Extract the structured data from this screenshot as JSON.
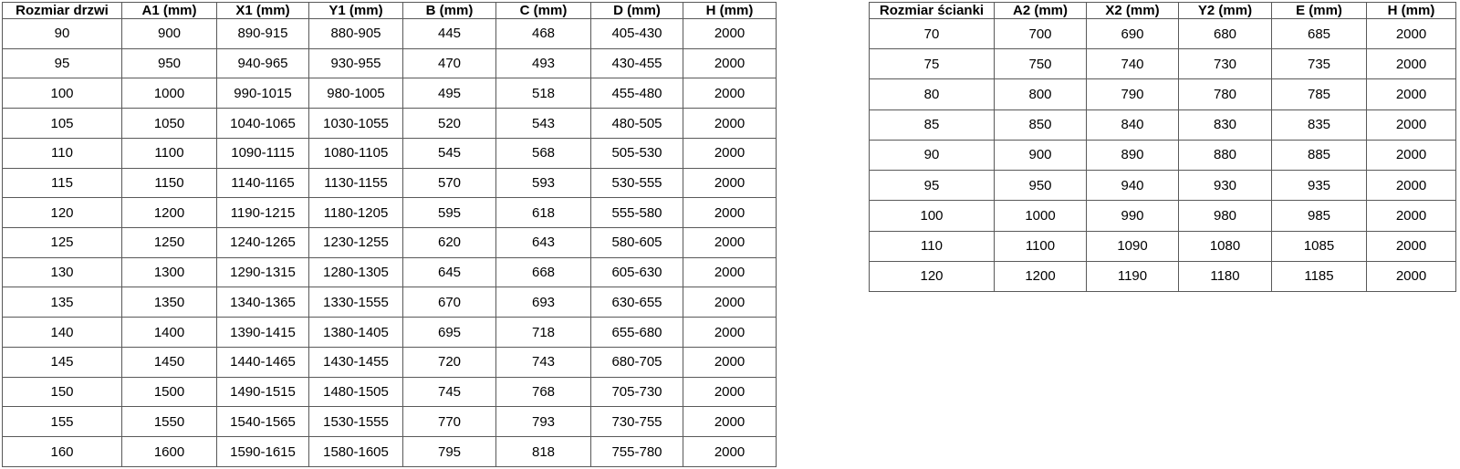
{
  "colors": {
    "background": "#ffffff",
    "border": "#595959",
    "text": "#000000"
  },
  "door_table": {
    "headers": [
      "Rozmiar drzwi",
      "A1 (mm)",
      "X1 (mm)",
      "Y1 (mm)",
      "B (mm)",
      "C (mm)",
      "D (mm)",
      "H (mm)"
    ],
    "rows": [
      [
        "90",
        "900",
        "890-915",
        "880-905",
        "445",
        "468",
        "405-430",
        "2000"
      ],
      [
        "95",
        "950",
        "940-965",
        "930-955",
        "470",
        "493",
        "430-455",
        "2000"
      ],
      [
        "100",
        "1000",
        "990-1015",
        "980-1005",
        "495",
        "518",
        "455-480",
        "2000"
      ],
      [
        "105",
        "1050",
        "1040-1065",
        "1030-1055",
        "520",
        "543",
        "480-505",
        "2000"
      ],
      [
        "110",
        "1100",
        "1090-1115",
        "1080-1105",
        "545",
        "568",
        "505-530",
        "2000"
      ],
      [
        "115",
        "1150",
        "1140-1165",
        "1130-1155",
        "570",
        "593",
        "530-555",
        "2000"
      ],
      [
        "120",
        "1200",
        "1190-1215",
        "1180-1205",
        "595",
        "618",
        "555-580",
        "2000"
      ],
      [
        "125",
        "1250",
        "1240-1265",
        "1230-1255",
        "620",
        "643",
        "580-605",
        "2000"
      ],
      [
        "130",
        "1300",
        "1290-1315",
        "1280-1305",
        "645",
        "668",
        "605-630",
        "2000"
      ],
      [
        "135",
        "1350",
        "1340-1365",
        "1330-1555",
        "670",
        "693",
        "630-655",
        "2000"
      ],
      [
        "140",
        "1400",
        "1390-1415",
        "1380-1405",
        "695",
        "718",
        "655-680",
        "2000"
      ],
      [
        "145",
        "1450",
        "1440-1465",
        "1430-1455",
        "720",
        "743",
        "680-705",
        "2000"
      ],
      [
        "150",
        "1500",
        "1490-1515",
        "1480-1505",
        "745",
        "768",
        "705-730",
        "2000"
      ],
      [
        "155",
        "1550",
        "1540-1565",
        "1530-1555",
        "770",
        "793",
        "730-755",
        "2000"
      ],
      [
        "160",
        "1600",
        "1590-1615",
        "1580-1605",
        "795",
        "818",
        "755-780",
        "2000"
      ]
    ]
  },
  "wall_table": {
    "headers": [
      "Rozmiar ścianki",
      "A2 (mm)",
      "X2 (mm)",
      "Y2 (mm)",
      "E (mm)",
      "H (mm)"
    ],
    "rows": [
      [
        "70",
        "700",
        "690",
        "680",
        "685",
        "2000"
      ],
      [
        "75",
        "750",
        "740",
        "730",
        "735",
        "2000"
      ],
      [
        "80",
        "800",
        "790",
        "780",
        "785",
        "2000"
      ],
      [
        "85",
        "850",
        "840",
        "830",
        "835",
        "2000"
      ],
      [
        "90",
        "900",
        "890",
        "880",
        "885",
        "2000"
      ],
      [
        "95",
        "950",
        "940",
        "930",
        "935",
        "2000"
      ],
      [
        "100",
        "1000",
        "990",
        "980",
        "985",
        "2000"
      ],
      [
        "110",
        "1100",
        "1090",
        "1080",
        "1085",
        "2000"
      ],
      [
        "120",
        "1200",
        "1190",
        "1180",
        "1185",
        "2000"
      ]
    ]
  }
}
